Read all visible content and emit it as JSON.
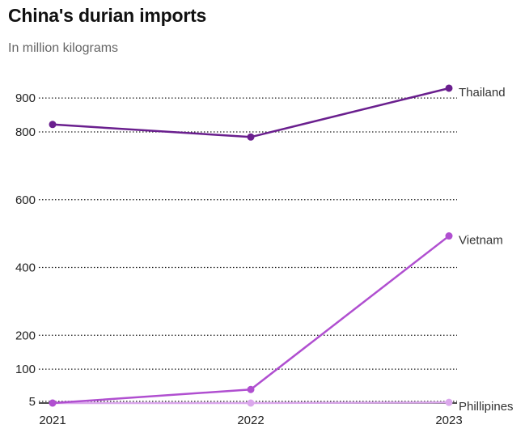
{
  "chart_data": {
    "type": "line",
    "title": "China's durian imports",
    "subtitle": "In million kilograms",
    "x": [
      "2021",
      "2022",
      "2023"
    ],
    "y_ticks": [
      5,
      100,
      200,
      400,
      600,
      800,
      900
    ],
    "ylim": [
      0,
      930
    ],
    "grid": true,
    "legend": "direct labels at line ends",
    "series": [
      {
        "name": "Thailand",
        "values": [
          822,
          785,
          929
        ],
        "color": "#6a1f8e"
      },
      {
        "name": "Vietnam",
        "values": [
          0,
          40,
          493
        ],
        "color": "#b04fd0"
      },
      {
        "name": "Phillipines",
        "values": [
          0,
          0,
          2
        ],
        "color": "#dba8ec"
      }
    ]
  }
}
